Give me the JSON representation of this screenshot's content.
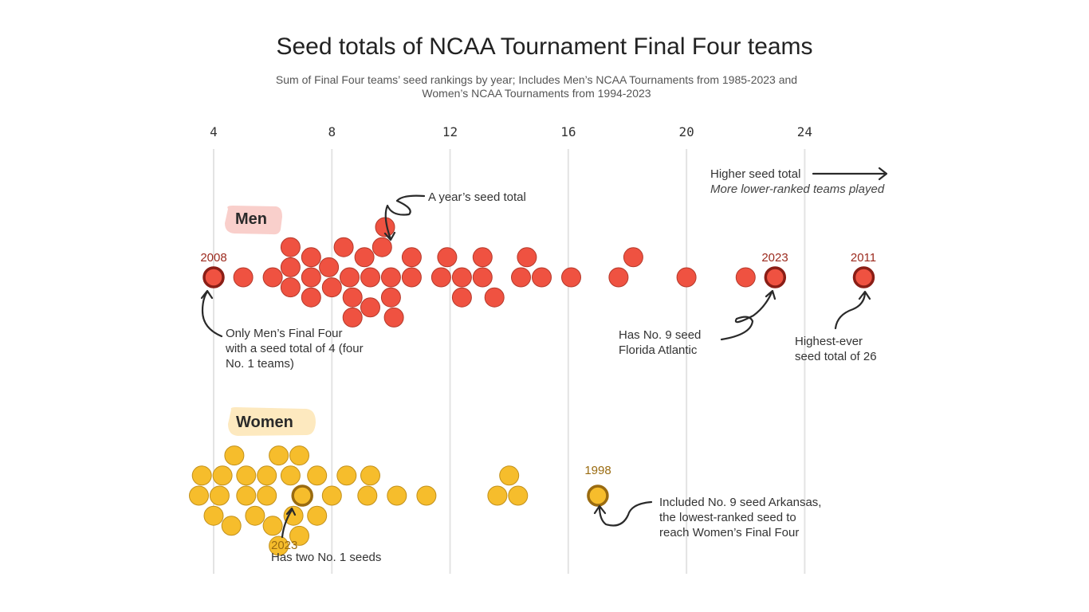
{
  "title": "Seed totals of NCAA Tournament Final Four teams",
  "subtitle": "Sum of Final Four teams’ seed rankings by year; Includes Men’s NCAA Tournaments from 1985-2023 and Women’s NCAA Tournaments from 1994-2023",
  "colors": {
    "men_fill": "#ef5241",
    "men_stroke": "#b4392b",
    "men_highlight_stroke": "#8a1e16",
    "men_label_bg": "#f9cfcb",
    "women_fill": "#f6bd2c",
    "women_stroke": "#c1901c",
    "women_highlight_stroke": "#9a6b10",
    "women_label_bg": "#fde9bf",
    "grid": "#e3e3e3"
  },
  "chart_data": {
    "type": "beeswarm",
    "x_axis": {
      "ticks": [
        4,
        8,
        12,
        16,
        20,
        24
      ],
      "range": [
        3,
        27
      ],
      "position": "top",
      "grid": true
    },
    "direction_note": {
      "label": "Higher seed total",
      "sublabel": "More lower-ranked teams played"
    },
    "series": [
      {
        "name": "Men",
        "values": [
          4,
          5,
          6,
          6.6,
          6.6,
          6.6,
          7.3,
          7.3,
          7.3,
          7.9,
          8.0,
          8.4,
          8.6,
          8.7,
          8.7,
          9.1,
          9.3,
          9.3,
          9.7,
          9.8,
          10.0,
          10.0,
          10.1,
          10.7,
          10.7,
          11.7,
          11.9,
          12.4,
          12.4,
          13.1,
          13.1,
          13.5,
          14.4,
          14.6,
          15.1,
          16.1,
          17.7,
          18.2,
          20.0,
          22.0,
          23.0,
          26.0
        ],
        "highlights": [
          {
            "year": "2008",
            "value": 4,
            "note": "Only Men’s Final Four with a seed total of 4 (four No. 1 teams)"
          },
          {
            "year": "2023",
            "value": 23,
            "note": "Has No. 9 seed Florida Atlantic"
          },
          {
            "year": "2011",
            "value": 26,
            "note": "Highest-ever seed total of 26"
          }
        ],
        "point_note": "A year’s seed total"
      },
      {
        "name": "Women",
        "values": [
          3.5,
          3.6,
          4.0,
          4.2,
          4.3,
          4.6,
          4.7,
          5.1,
          5.1,
          5.4,
          5.8,
          5.8,
          6.0,
          6.2,
          6.2,
          6.6,
          6.7,
          6.9,
          6.9,
          7.0,
          7.5,
          7.5,
          8.0,
          8.5,
          9.2,
          9.3,
          10.2,
          11.2,
          13.6,
          14.0,
          14.3,
          17.0
        ],
        "highlights": [
          {
            "year": "2023",
            "value": 7,
            "note": "Has two No. 1 seeds"
          },
          {
            "year": "1998",
            "value": 17,
            "note": "Included No. 9 seed Arkansas, the lowest-ranked seed to reach Women’s Final Four"
          }
        ]
      }
    ]
  },
  "annotations": {
    "men_note_2008": [
      "Only Men’s Final Four",
      "with a seed total of 4 (four",
      "No. 1 teams)"
    ],
    "men_note_2023": [
      "Has No. 9 seed",
      "Florida Atlantic"
    ],
    "men_note_2011": [
      "Highest-ever",
      "seed total of 26"
    ],
    "women_note_2023": "Has two No. 1 seeds",
    "women_note_1998": [
      "Included No. 9 seed Arkansas,",
      "the lowest-ranked seed to",
      "reach Women’s Final Four"
    ]
  }
}
